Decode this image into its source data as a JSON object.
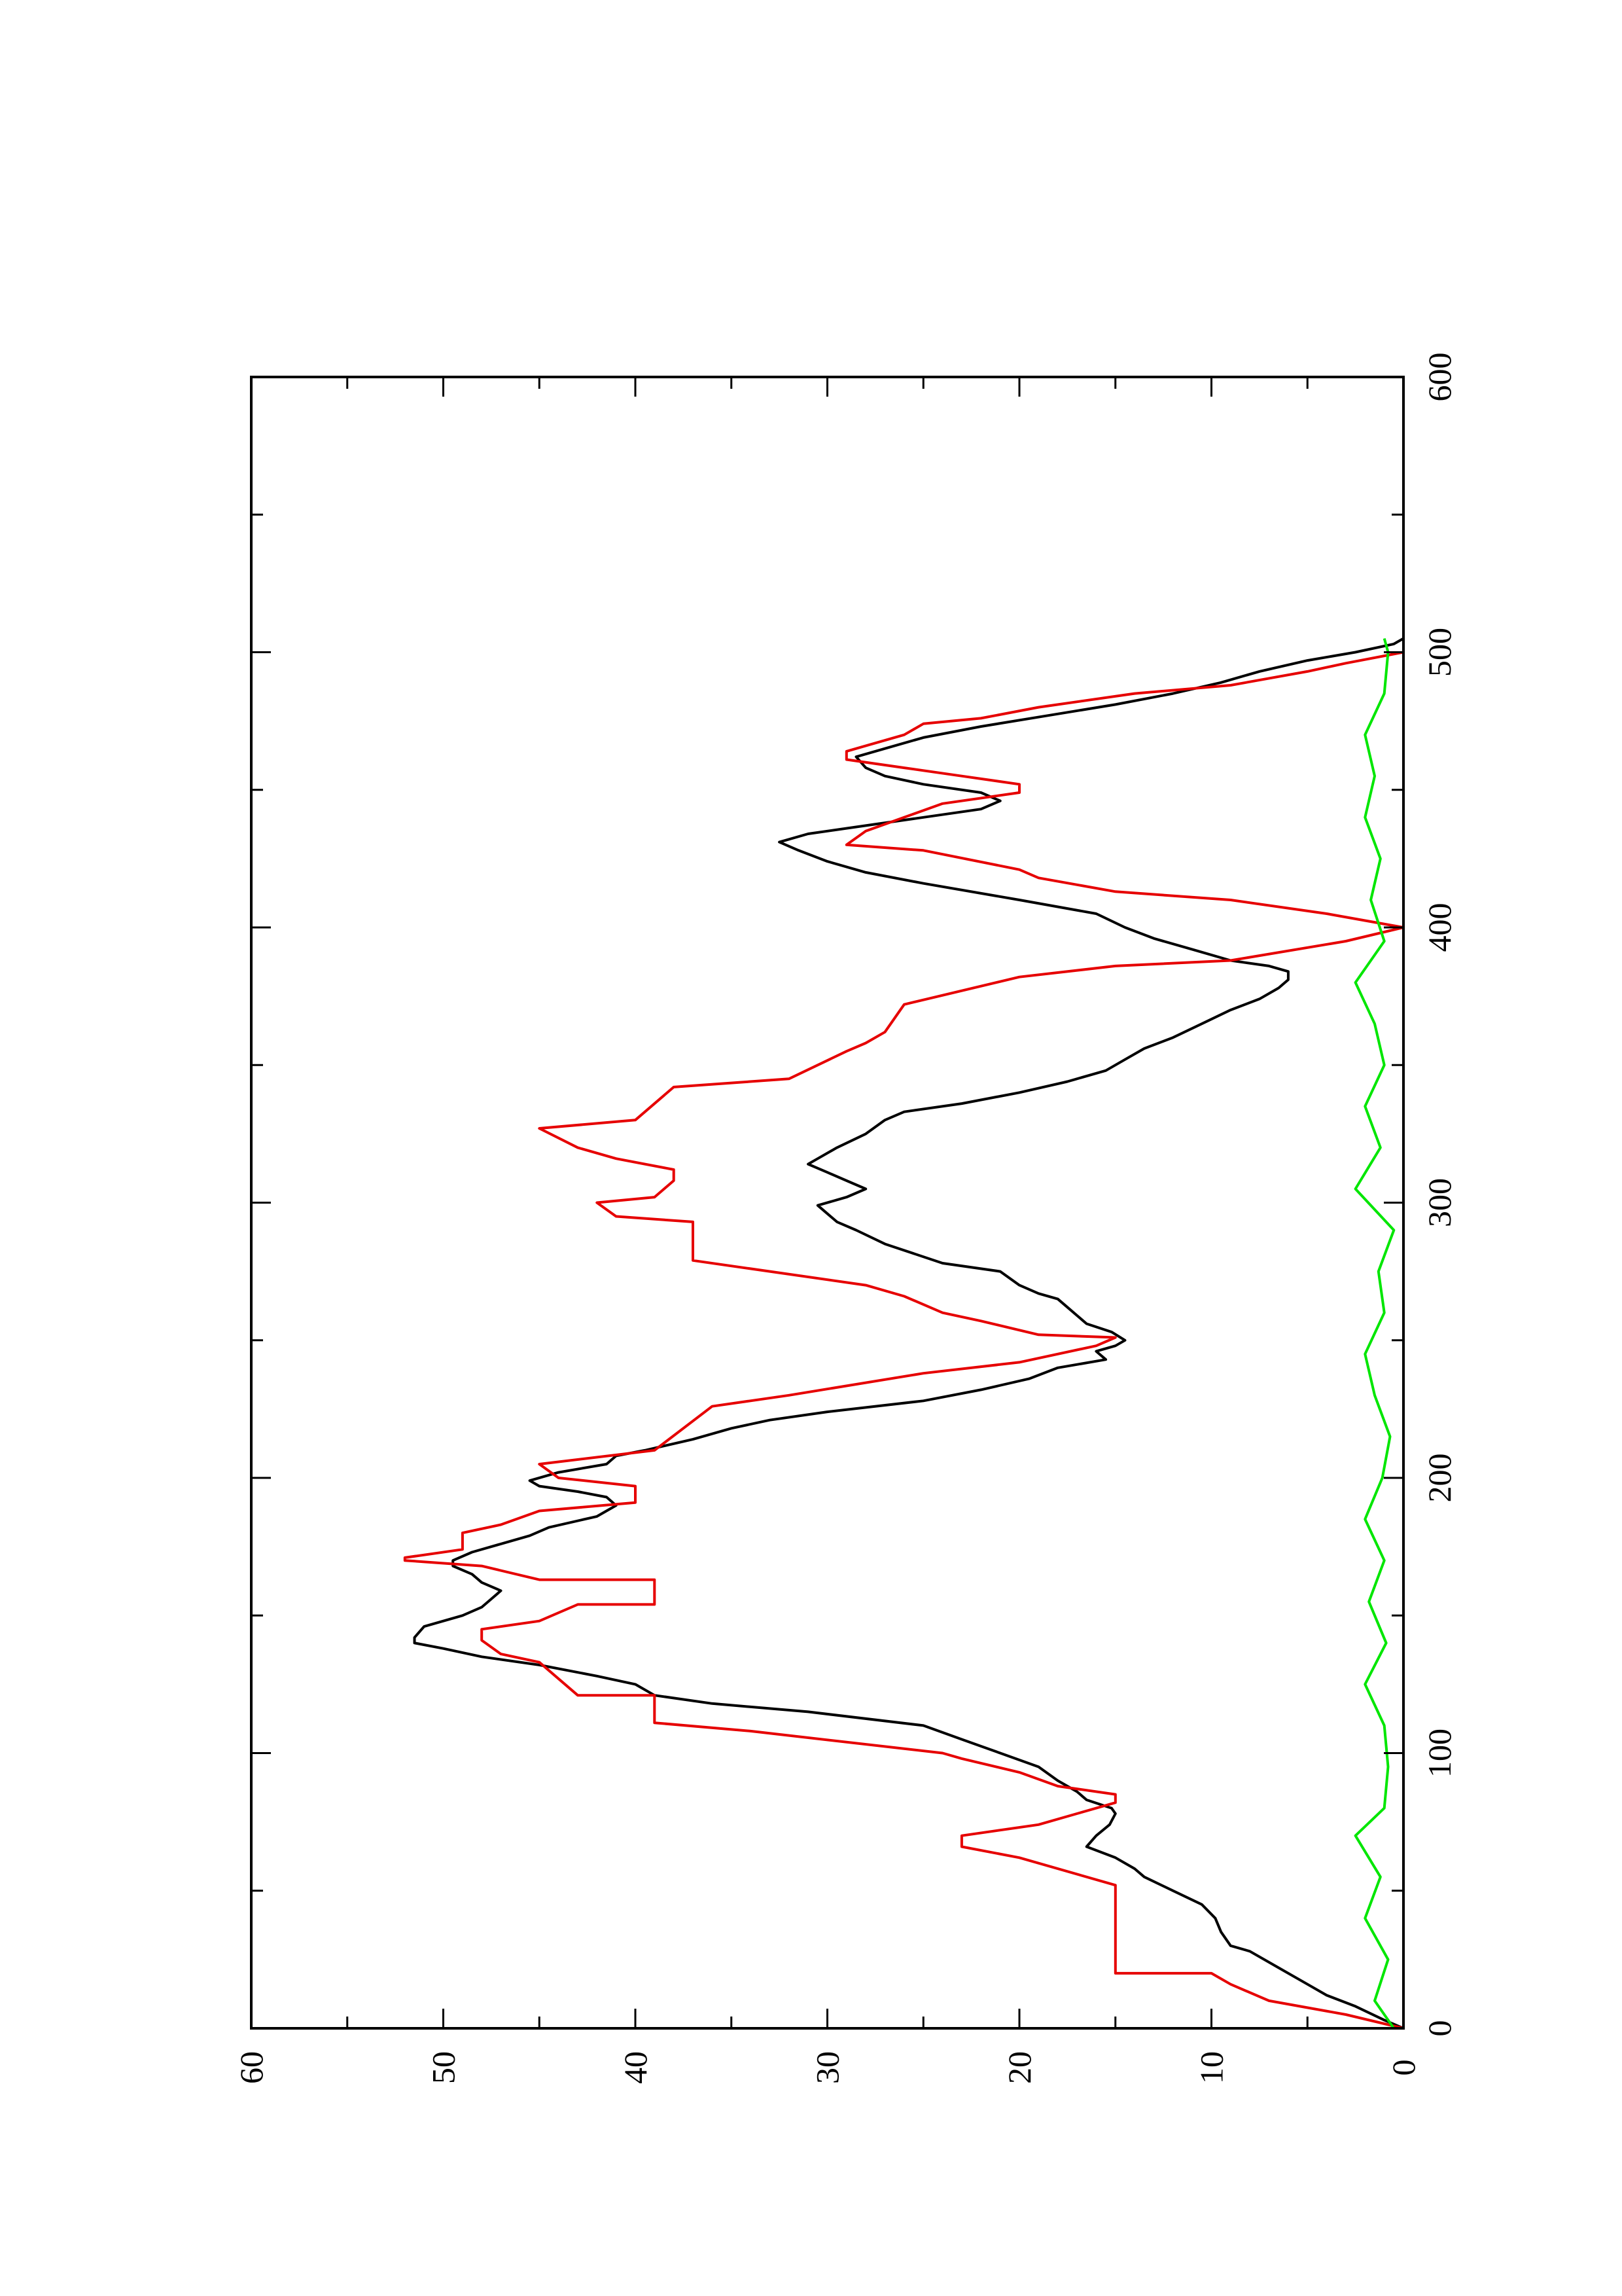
{
  "chart_data": {
    "type": "line",
    "orientation": "rotated 90° counter-clockwise (x axis runs vertically, y axis horizontally)",
    "x_axis": {
      "range": [
        0,
        600
      ],
      "ticks": [
        "0",
        "100",
        "200",
        "300",
        "400",
        "500",
        "600"
      ],
      "minor_step": 50
    },
    "y_axis": {
      "range": [
        0,
        60
      ],
      "ticks": [
        "0",
        "10",
        "20",
        "30",
        "40",
        "50",
        "60"
      ],
      "minor_step": 5
    },
    "grid": false,
    "legend": "none",
    "series": [
      {
        "color": "#000000",
        "style": "smooth profile",
        "points": [
          [
            0,
            0
          ],
          [
            3,
            1
          ],
          [
            8,
            2.5
          ],
          [
            12,
            4
          ],
          [
            16,
            5
          ],
          [
            22,
            6.5
          ],
          [
            28,
            8
          ],
          [
            30,
            9
          ],
          [
            35,
            9.5
          ],
          [
            40,
            9.8
          ],
          [
            45,
            10.5
          ],
          [
            50,
            12
          ],
          [
            55,
            13.5
          ],
          [
            58,
            14
          ],
          [
            62,
            15
          ],
          [
            66,
            16.5
          ],
          [
            70,
            16
          ],
          [
            74,
            15.3
          ],
          [
            78,
            15
          ],
          [
            80,
            15.2
          ],
          [
            83,
            16.5
          ],
          [
            86,
            17
          ],
          [
            90,
            18
          ],
          [
            95,
            19
          ],
          [
            100,
            21
          ],
          [
            105,
            23
          ],
          [
            110,
            25
          ],
          [
            115,
            31
          ],
          [
            118,
            36
          ],
          [
            121,
            39
          ],
          [
            125,
            40
          ],
          [
            128,
            42
          ],
          [
            132,
            45
          ],
          [
            135,
            48
          ],
          [
            138,
            50
          ],
          [
            140,
            51.5
          ],
          [
            142,
            51.5
          ],
          [
            146,
            51
          ],
          [
            150,
            49
          ],
          [
            153,
            48
          ],
          [
            156,
            47.5
          ],
          [
            159,
            47
          ],
          [
            162,
            48
          ],
          [
            165,
            48.5
          ],
          [
            168,
            49.5
          ],
          [
            170,
            49.5
          ],
          [
            173,
            48.5
          ],
          [
            176,
            47
          ],
          [
            179,
            45.5
          ],
          [
            182,
            44.5
          ],
          [
            186,
            42
          ],
          [
            190,
            41
          ],
          [
            193,
            41.5
          ],
          [
            195,
            43
          ],
          [
            197,
            45
          ],
          [
            199,
            45.5
          ],
          [
            202,
            44
          ],
          [
            205,
            41.5
          ],
          [
            208,
            41
          ],
          [
            210,
            39.5
          ],
          [
            214,
            37
          ],
          [
            218,
            35
          ],
          [
            221,
            33
          ],
          [
            224,
            30
          ],
          [
            228,
            25
          ],
          [
            232,
            22
          ],
          [
            236,
            19.5
          ],
          [
            240,
            18
          ],
          [
            243,
            15.5
          ],
          [
            246,
            16
          ],
          [
            248,
            15
          ],
          [
            250,
            14.5
          ],
          [
            253,
            15.2
          ],
          [
            256,
            16.5
          ],
          [
            259,
            17
          ],
          [
            262,
            17.5
          ],
          [
            265,
            18
          ],
          [
            267,
            19
          ],
          [
            270,
            20
          ],
          [
            275,
            21
          ],
          [
            278,
            24
          ],
          [
            285,
            27
          ],
          [
            290,
            28.5
          ],
          [
            293,
            29.5
          ],
          [
            296,
            30
          ],
          [
            299,
            30.5
          ],
          [
            302,
            29
          ],
          [
            305,
            28
          ],
          [
            308,
            29
          ],
          [
            311,
            30
          ],
          [
            314,
            31
          ],
          [
            316,
            30.5
          ],
          [
            320,
            29.5
          ],
          [
            325,
            28
          ],
          [
            330,
            27
          ],
          [
            333,
            26
          ],
          [
            336,
            23
          ],
          [
            340,
            20
          ],
          [
            344,
            17.5
          ],
          [
            348,
            15.5
          ],
          [
            352,
            14.5
          ],
          [
            356,
            13.5
          ],
          [
            360,
            12
          ],
          [
            365,
            10.5
          ],
          [
            370,
            9
          ],
          [
            374,
            7.5
          ],
          [
            378,
            6.5
          ],
          [
            381,
            6
          ],
          [
            384,
            6
          ],
          [
            386,
            7
          ],
          [
            388,
            9
          ],
          [
            392,
            11
          ],
          [
            396,
            13
          ],
          [
            400,
            14.5
          ],
          [
            405,
            16
          ],
          [
            410,
            20
          ],
          [
            416,
            25
          ],
          [
            420,
            28
          ],
          [
            424,
            30
          ],
          [
            428,
            31.5
          ],
          [
            431,
            32.5
          ],
          [
            434,
            31
          ],
          [
            437,
            28
          ],
          [
            440,
            25
          ],
          [
            443,
            22
          ],
          [
            446,
            21
          ],
          [
            449,
            22
          ],
          [
            452,
            25
          ],
          [
            455,
            27
          ],
          [
            458,
            28
          ],
          [
            462,
            28.5
          ],
          [
            465,
            27
          ],
          [
            469,
            25
          ],
          [
            473,
            22
          ],
          [
            477,
            18.5
          ],
          [
            481,
            15
          ],
          [
            485,
            12
          ],
          [
            489,
            9.5
          ],
          [
            493,
            7.5
          ],
          [
            497,
            5
          ],
          [
            500,
            2.5
          ],
          [
            503,
            0.5
          ],
          [
            505,
            0
          ]
        ]
      },
      {
        "color": "#e60000",
        "style": "stepped profile",
        "points": [
          [
            0,
            0
          ],
          [
            5,
            3
          ],
          [
            10,
            7
          ],
          [
            16,
            9
          ],
          [
            20,
            10
          ],
          [
            20,
            15
          ],
          [
            52,
            15
          ],
          [
            62,
            20
          ],
          [
            66,
            23
          ],
          [
            70,
            23
          ],
          [
            74,
            19
          ],
          [
            78,
            17
          ],
          [
            82,
            15
          ],
          [
            85,
            15
          ],
          [
            88,
            18
          ],
          [
            93,
            20
          ],
          [
            98,
            23
          ],
          [
            100,
            24
          ],
          [
            108,
            34
          ],
          [
            111,
            39
          ],
          [
            121,
            39
          ],
          [
            121,
            43
          ],
          [
            133,
            45
          ],
          [
            136,
            47
          ],
          [
            141,
            48
          ],
          [
            145,
            48
          ],
          [
            148,
            45
          ],
          [
            154,
            43
          ],
          [
            154,
            39
          ],
          [
            163,
            39
          ],
          [
            163,
            45
          ],
          [
            168,
            48
          ],
          [
            170,
            52
          ],
          [
            171,
            52
          ],
          [
            174,
            49
          ],
          [
            180,
            49
          ],
          [
            183,
            47
          ],
          [
            188,
            45
          ],
          [
            191,
            40
          ],
          [
            197,
            40
          ],
          [
            200,
            44
          ],
          [
            205,
            45
          ],
          [
            210,
            39
          ],
          [
            226,
            36
          ],
          [
            230,
            32
          ],
          [
            238,
            25
          ],
          [
            242,
            20
          ],
          [
            248,
            16
          ],
          [
            251,
            15
          ],
          [
            252,
            19
          ],
          [
            257,
            22
          ],
          [
            260,
            24
          ],
          [
            266,
            26
          ],
          [
            270,
            28
          ],
          [
            279,
            37
          ],
          [
            293,
            37
          ],
          [
            295,
            41
          ],
          [
            300,
            42
          ],
          [
            302,
            39
          ],
          [
            308,
            38
          ],
          [
            312,
            38
          ],
          [
            316,
            41
          ],
          [
            320,
            43
          ],
          [
            327,
            45
          ],
          [
            330,
            40
          ],
          [
            342,
            38
          ],
          [
            345,
            32
          ],
          [
            355,
            29
          ],
          [
            358,
            28
          ],
          [
            362,
            27
          ],
          [
            372,
            26
          ],
          [
            382,
            20
          ],
          [
            386,
            15
          ],
          [
            388,
            9
          ],
          [
            395,
            3
          ],
          [
            400,
            0
          ],
          [
            405,
            4
          ],
          [
            410,
            9
          ],
          [
            413,
            15
          ],
          [
            418,
            19
          ],
          [
            421,
            20
          ],
          [
            428,
            25
          ],
          [
            430,
            29
          ],
          [
            435,
            28
          ],
          [
            440,
            26
          ],
          [
            445,
            24
          ],
          [
            449,
            20
          ],
          [
            452,
            20
          ],
          [
            455,
            23
          ],
          [
            458,
            26
          ],
          [
            461,
            29
          ],
          [
            464,
            29
          ],
          [
            470,
            26
          ],
          [
            474,
            25
          ],
          [
            476,
            22
          ],
          [
            480,
            19
          ],
          [
            485,
            14
          ],
          [
            488,
            9
          ],
          [
            493,
            5
          ],
          [
            496,
            3
          ],
          [
            500,
            0
          ]
        ]
      },
      {
        "color": "#00e600",
        "style": "noisy baseline",
        "points": [
          [
            0,
            0.5
          ],
          [
            10,
            1.5
          ],
          [
            25,
            0.8
          ],
          [
            40,
            2
          ],
          [
            55,
            1.2
          ],
          [
            70,
            2.5
          ],
          [
            80,
            1
          ],
          [
            95,
            0.8
          ],
          [
            110,
            1
          ],
          [
            125,
            2
          ],
          [
            140,
            0.9
          ],
          [
            155,
            1.8
          ],
          [
            170,
            1
          ],
          [
            185,
            2
          ],
          [
            200,
            1.1
          ],
          [
            215,
            0.7
          ],
          [
            230,
            1.5
          ],
          [
            245,
            2
          ],
          [
            260,
            1
          ],
          [
            275,
            1.3
          ],
          [
            290,
            0.5
          ],
          [
            305,
            2.5
          ],
          [
            320,
            1.2
          ],
          [
            335,
            2
          ],
          [
            350,
            1
          ],
          [
            365,
            1.5
          ],
          [
            380,
            2.5
          ],
          [
            395,
            1
          ],
          [
            410,
            1.7
          ],
          [
            425,
            1.2
          ],
          [
            440,
            2
          ],
          [
            455,
            1.5
          ],
          [
            470,
            2
          ],
          [
            485,
            1
          ],
          [
            500,
            0.8
          ],
          [
            505,
            1
          ]
        ]
      }
    ]
  }
}
